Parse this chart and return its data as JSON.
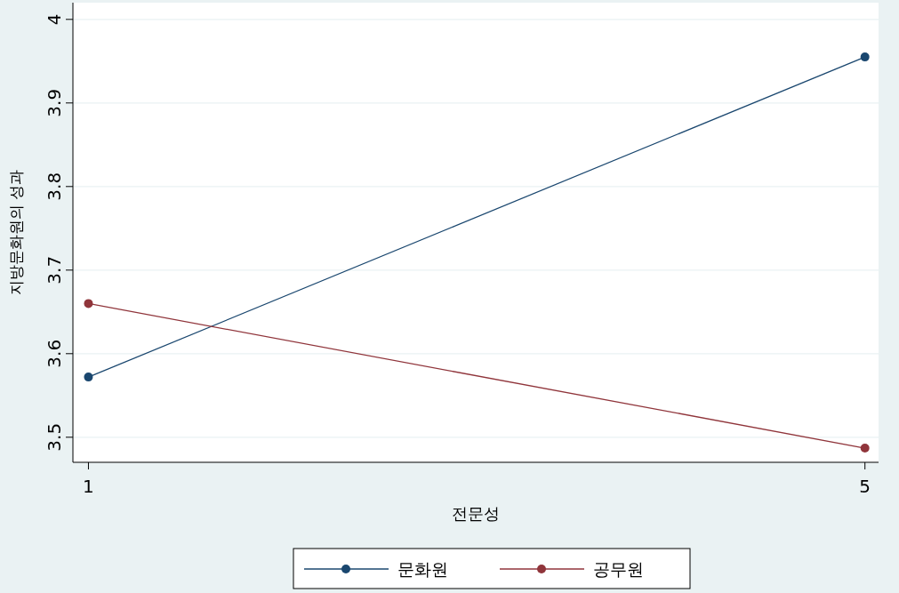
{
  "chart_data": {
    "type": "line",
    "xlabel": "전문성",
    "ylabel": "지방문화원의 성과",
    "x": [
      1,
      5
    ],
    "series": [
      {
        "name": "문화원",
        "color": "#1a476f",
        "values": [
          3.572,
          3.955
        ]
      },
      {
        "name": "공무원",
        "color": "#90353b",
        "values": [
          3.66,
          3.487
        ]
      }
    ],
    "xlim": [
      0.92,
      5.07
    ],
    "xticks": [
      1,
      5
    ],
    "ylim": [
      3.47,
      4.02
    ],
    "yticks": [
      3.5,
      3.6,
      3.7,
      3.8,
      3.9,
      4
    ],
    "grid": "y",
    "legend": "bottom",
    "marker": "circle",
    "line_style": "solid"
  }
}
